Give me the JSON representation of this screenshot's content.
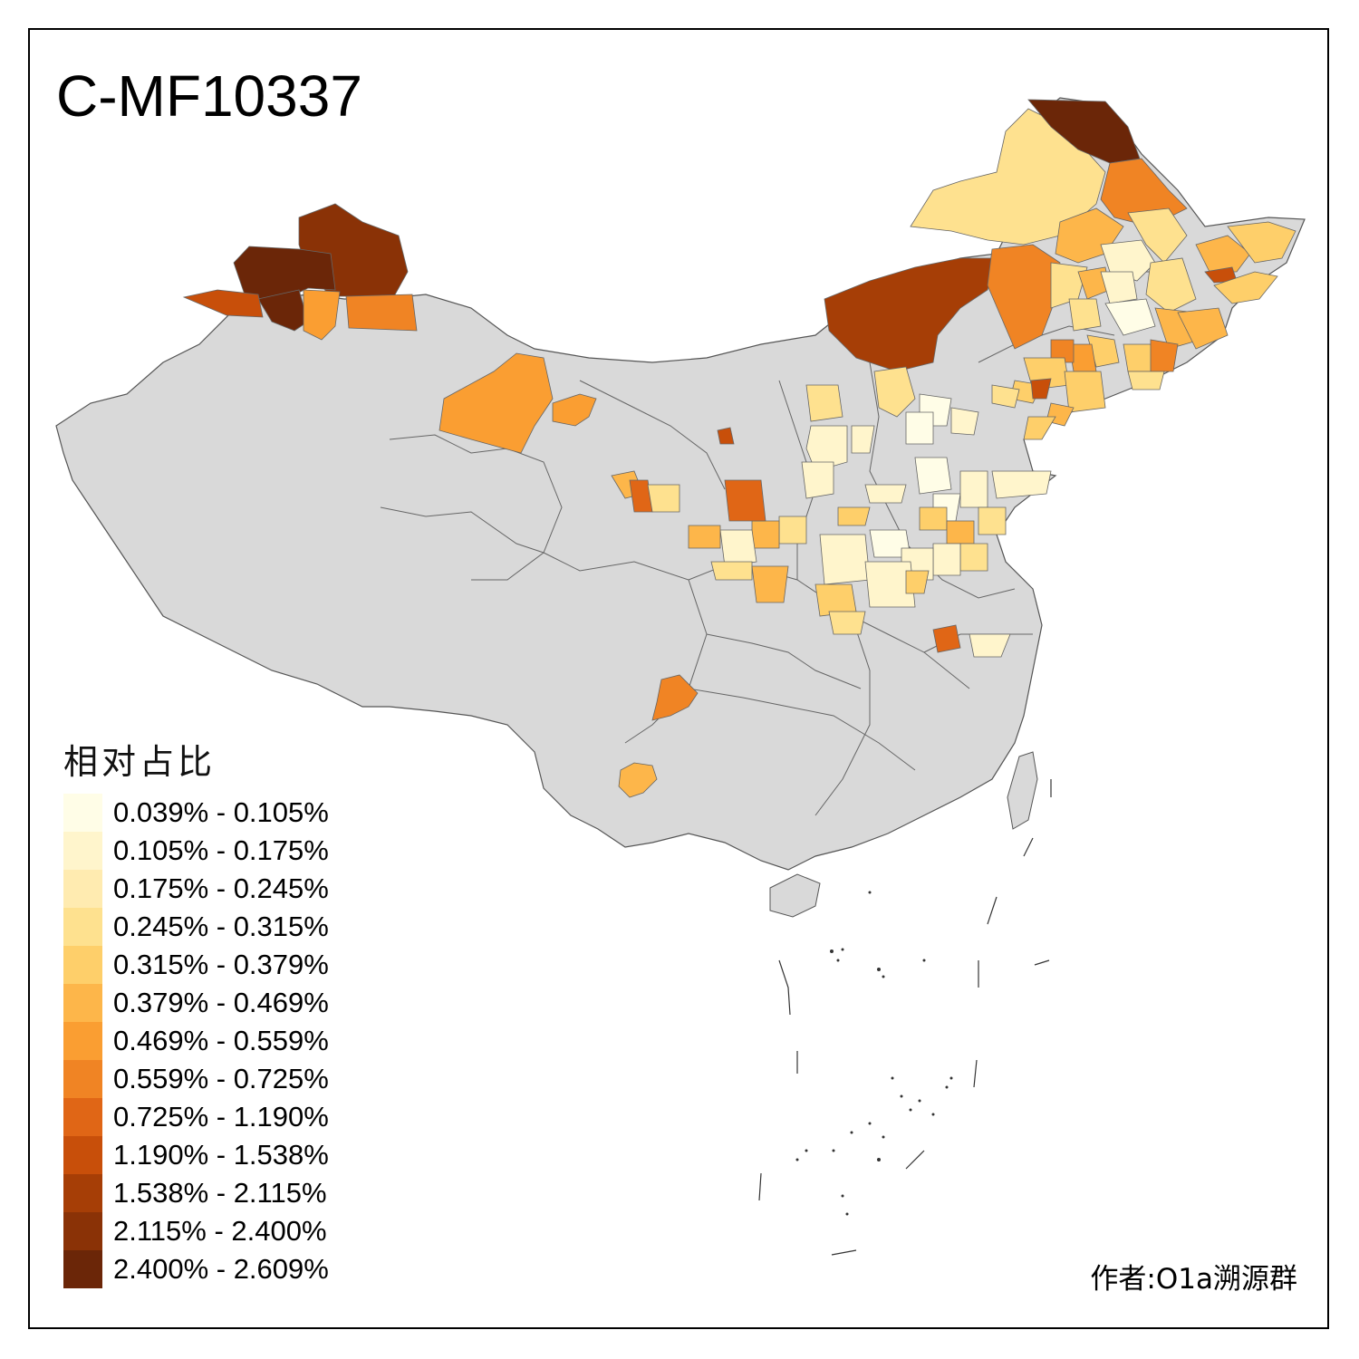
{
  "title": "C-MF10337",
  "legend": {
    "title": "相对占比",
    "bins": [
      {
        "label": "0.039% - 0.105%",
        "color": "#FFFDE7"
      },
      {
        "label": "0.105% - 0.175%",
        "color": "#FFF5CC"
      },
      {
        "label": "0.175% - 0.245%",
        "color": "#FFEBB0"
      },
      {
        "label": "0.245% - 0.315%",
        "color": "#FEE18F"
      },
      {
        "label": "0.315% - 0.379%",
        "color": "#FECF6A"
      },
      {
        "label": "0.379% - 0.469%",
        "color": "#FDB64A"
      },
      {
        "label": "0.469% - 0.559%",
        "color": "#FA9E32"
      },
      {
        "label": "0.559% - 0.725%",
        "color": "#F08424"
      },
      {
        "label": "0.725% - 1.190%",
        "color": "#E06616"
      },
      {
        "label": "1.190% - 1.538%",
        "color": "#C84F0A"
      },
      {
        "label": "1.538% - 2.115%",
        "color": "#A63E06"
      },
      {
        "label": "2.115% - 2.400%",
        "color": "#8A3206"
      },
      {
        "label": "2.400% - 2.609%",
        "color": "#6B2608"
      }
    ]
  },
  "credit": "作者:O1a溯源群",
  "colors": {
    "no_data": "#D9D9D9",
    "border": "#555555",
    "background": "#FFFFFF"
  }
}
